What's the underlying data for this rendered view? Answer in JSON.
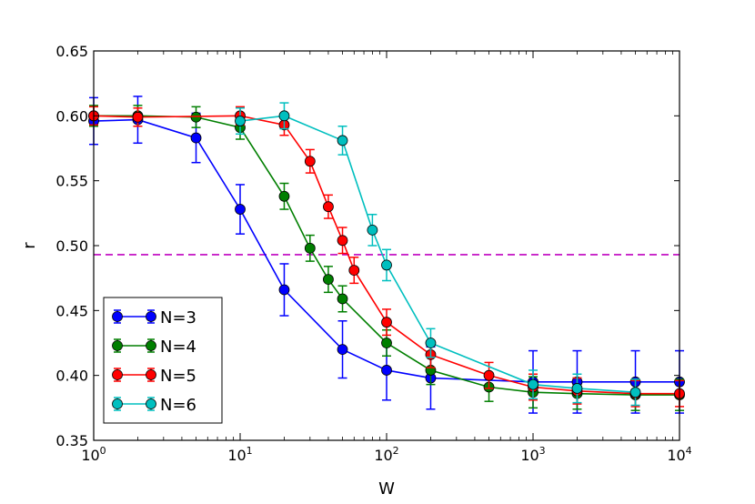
{
  "chart_data": {
    "type": "line",
    "title": "",
    "xlabel": "W",
    "ylabel": "r",
    "xscale": "log",
    "xlim": [
      1,
      10000
    ],
    "ylim": [
      0.35,
      0.65
    ],
    "x_ticks": [
      {
        "value": 1,
        "base": "10",
        "exp": "0"
      },
      {
        "value": 10,
        "base": "10",
        "exp": "1"
      },
      {
        "value": 100,
        "base": "10",
        "exp": "2"
      },
      {
        "value": 1000,
        "base": "10",
        "exp": "3"
      },
      {
        "value": 10000,
        "base": "10",
        "exp": "4"
      }
    ],
    "y_ticks": [
      {
        "value": 0.35,
        "label": "0.35"
      },
      {
        "value": 0.4,
        "label": "0.40"
      },
      {
        "value": 0.45,
        "label": "0.45"
      },
      {
        "value": 0.5,
        "label": "0.50"
      },
      {
        "value": 0.55,
        "label": "0.55"
      },
      {
        "value": 0.6,
        "label": "0.60"
      },
      {
        "value": 0.65,
        "label": "0.65"
      }
    ],
    "reference_line": {
      "y": 0.493,
      "color": "#bf00bf",
      "style": "dashed"
    },
    "legend_position": "lower-left",
    "series": [
      {
        "name": "N=3",
        "color": "#0000ff",
        "x": [
          1,
          2,
          5,
          10,
          20,
          50,
          100,
          200,
          1000,
          2000,
          5000,
          10000
        ],
        "y": [
          0.596,
          0.597,
          0.583,
          0.528,
          0.466,
          0.42,
          0.404,
          0.398,
          0.395,
          0.395,
          0.395,
          0.395
        ],
        "err": [
          0.018,
          0.018,
          0.019,
          0.019,
          0.02,
          0.022,
          0.023,
          0.024,
          0.024,
          0.024,
          0.024,
          0.024
        ]
      },
      {
        "name": "N=4",
        "color": "#007f00",
        "x": [
          1,
          2,
          5,
          10,
          20,
          30,
          40,
          50,
          100,
          200,
          500,
          1000,
          2000,
          5000,
          10000
        ],
        "y": [
          0.6,
          0.6,
          0.599,
          0.591,
          0.538,
          0.498,
          0.474,
          0.459,
          0.425,
          0.404,
          0.391,
          0.387,
          0.386,
          0.385,
          0.385
        ],
        "err": [
          0.008,
          0.008,
          0.008,
          0.009,
          0.01,
          0.01,
          0.01,
          0.01,
          0.01,
          0.011,
          0.011,
          0.012,
          0.012,
          0.012,
          0.012
        ]
      },
      {
        "name": "N=5",
        "color": "#ff0000",
        "x": [
          1,
          2,
          10,
          20,
          30,
          40,
          50,
          60,
          100,
          200,
          500,
          1000,
          2000,
          5000,
          10000
        ],
        "y": [
          0.6,
          0.599,
          0.6,
          0.593,
          0.565,
          0.53,
          0.504,
          0.481,
          0.441,
          0.416,
          0.4,
          0.391,
          0.388,
          0.386,
          0.386
        ],
        "err": [
          0.007,
          0.007,
          0.007,
          0.008,
          0.009,
          0.009,
          0.01,
          0.01,
          0.01,
          0.01,
          0.01,
          0.01,
          0.01,
          0.01,
          0.01
        ]
      },
      {
        "name": "N=6",
        "color": "#00bfbf",
        "x": [
          10,
          20,
          50,
          80,
          100,
          200,
          1000,
          2000,
          5000
        ],
        "y": [
          0.596,
          0.6,
          0.581,
          0.512,
          0.485,
          0.425,
          0.393,
          0.39,
          0.387
        ],
        "err": [
          0.01,
          0.01,
          0.011,
          0.012,
          0.012,
          0.011,
          0.011,
          0.011,
          0.01
        ]
      }
    ]
  }
}
